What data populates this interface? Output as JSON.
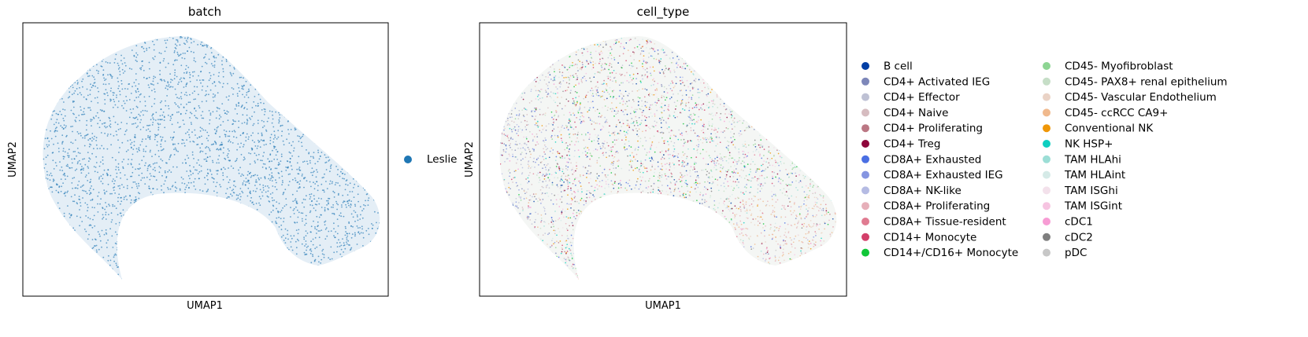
{
  "chart_data": [
    {
      "type": "scatter",
      "title": "batch",
      "xlabel": "UMAP1",
      "ylabel": "UMAP2",
      "xticks": false,
      "yticks": false,
      "grid": false,
      "legend_position": "right",
      "point_color": "#1f77b4",
      "legend": [
        {
          "name": "Leslie",
          "color": "#1f77b4"
        }
      ]
    },
    {
      "type": "scatter",
      "title": "cell_type",
      "xlabel": "UMAP1",
      "ylabel": "UMAP2",
      "xticks": false,
      "yticks": false,
      "grid": false,
      "legend_position": "right",
      "legend": [
        {
          "name": "B cell",
          "color": "#023fa5"
        },
        {
          "name": "CD4+ Activated IEG",
          "color": "#7d87b9"
        },
        {
          "name": "CD4+ Effector",
          "color": "#bec1d4"
        },
        {
          "name": "CD4+ Naive",
          "color": "#d6bcc0"
        },
        {
          "name": "CD4+ Proliferating",
          "color": "#bb7784"
        },
        {
          "name": "CD4+ Treg",
          "color": "#8e063b"
        },
        {
          "name": "CD8A+ Exhausted",
          "color": "#4a6fe3"
        },
        {
          "name": "CD8A+ Exhausted IEG",
          "color": "#8595e1"
        },
        {
          "name": "CD8A+ NK-like",
          "color": "#b5bbe3"
        },
        {
          "name": "CD8A+ Proliferating",
          "color": "#e6afb9"
        },
        {
          "name": "CD8A+ Tissue-resident",
          "color": "#e07b91"
        },
        {
          "name": "CD14+ Monocyte",
          "color": "#d33f6a"
        },
        {
          "name": "CD14+/CD16+ Monocyte",
          "color": "#11c638"
        },
        {
          "name": "CD45- Myofibroblast",
          "color": "#8dd593"
        },
        {
          "name": "CD45- PAX8+ renal epithelium",
          "color": "#c6dec7"
        },
        {
          "name": "CD45- Vascular Endothelium",
          "color": "#ead3c6"
        },
        {
          "name": "CD45- ccRCC CA9+",
          "color": "#f0b98d"
        },
        {
          "name": "Conventional NK",
          "color": "#ef9708"
        },
        {
          "name": "NK HSP+",
          "color": "#0fcfc0"
        },
        {
          "name": "TAM HLAhi",
          "color": "#9cded6"
        },
        {
          "name": "TAM HLAint",
          "color": "#d5eae7"
        },
        {
          "name": "TAM ISGhi",
          "color": "#f3e1eb"
        },
        {
          "name": "TAM ISGint",
          "color": "#f6c4e1"
        },
        {
          "name": "cDC1",
          "color": "#f79cd4"
        },
        {
          "name": "cDC2",
          "color": "#7f7f7f"
        },
        {
          "name": "pDC",
          "color": "#c7c7c7"
        }
      ]
    }
  ]
}
